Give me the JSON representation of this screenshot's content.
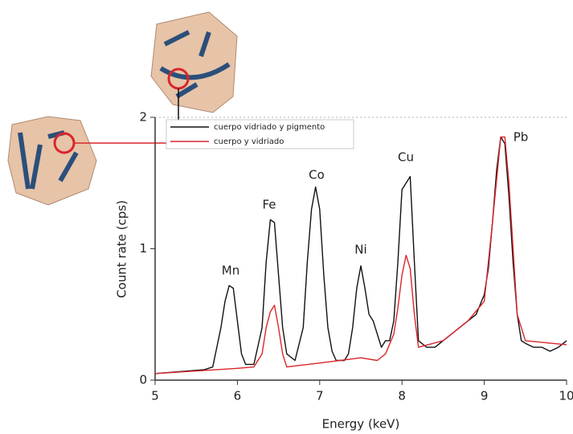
{
  "chart_data": {
    "type": "line",
    "xlabel": "Energy (keV)",
    "ylabel": "Count rate (cps)",
    "xlim": [
      5,
      10
    ],
    "ylim": [
      0,
      2
    ],
    "xticks": [
      5,
      6,
      7,
      8,
      9,
      10
    ],
    "yticks": [
      0,
      1,
      2
    ],
    "annotations": [
      "Mn",
      "Fe",
      "Co",
      "Ni",
      "Cu",
      "Pb"
    ],
    "legend": "upper left",
    "series": [
      {
        "name": "cuerpo vidriado y pigmento",
        "color": "#111111",
        "x": [
          5,
          5.2,
          5.4,
          5.6,
          5.7,
          5.8,
          5.85,
          5.9,
          5.95,
          6,
          6.05,
          6.1,
          6.2,
          6.3,
          6.35,
          6.4,
          6.45,
          6.5,
          6.55,
          6.6,
          6.7,
          6.8,
          6.85,
          6.9,
          6.95,
          7,
          7.05,
          7.1,
          7.15,
          7.2,
          7.3,
          7.35,
          7.4,
          7.45,
          7.5,
          7.55,
          7.6,
          7.65,
          7.7,
          7.75,
          7.8,
          7.85,
          7.9,
          7.95,
          8,
          8.05,
          8.1,
          8.15,
          8.2,
          8.3,
          8.4,
          8.5,
          8.6,
          8.7,
          8.8,
          8.9,
          9,
          9.05,
          9.1,
          9.15,
          9.2,
          9.25,
          9.3,
          9.35,
          9.4,
          9.45,
          9.5,
          9.6,
          9.7,
          9.8,
          9.9,
          10
        ],
        "values": [
          0.05,
          0.06,
          0.07,
          0.08,
          0.1,
          0.4,
          0.6,
          0.72,
          0.7,
          0.45,
          0.2,
          0.12,
          0.12,
          0.4,
          0.9,
          1.22,
          1.2,
          0.8,
          0.4,
          0.2,
          0.15,
          0.4,
          0.9,
          1.3,
          1.47,
          1.3,
          0.8,
          0.4,
          0.22,
          0.15,
          0.15,
          0.2,
          0.4,
          0.7,
          0.87,
          0.7,
          0.5,
          0.45,
          0.35,
          0.25,
          0.3,
          0.3,
          0.45,
          0.9,
          1.45,
          1.5,
          1.55,
          0.9,
          0.3,
          0.25,
          0.25,
          0.3,
          0.35,
          0.4,
          0.45,
          0.5,
          0.65,
          0.85,
          1.2,
          1.6,
          1.85,
          1.8,
          1.4,
          0.9,
          0.5,
          0.3,
          0.28,
          0.25,
          0.25,
          0.22,
          0.25,
          0.3
        ]
      },
      {
        "name": "cuerpo y vidriado",
        "color": "#d9262b",
        "x": [
          5,
          5.5,
          6,
          6.2,
          6.3,
          6.35,
          6.4,
          6.45,
          6.5,
          6.55,
          6.6,
          7,
          7.5,
          7.7,
          7.8,
          7.9,
          7.95,
          8,
          8.05,
          8.1,
          8.15,
          8.2,
          8.5,
          8.8,
          9,
          9.1,
          9.2,
          9.25,
          9.3,
          9.4,
          9.5,
          10
        ],
        "values": [
          0.05,
          0.07,
          0.09,
          0.1,
          0.2,
          0.4,
          0.52,
          0.57,
          0.4,
          0.2,
          0.1,
          0.13,
          0.17,
          0.15,
          0.2,
          0.35,
          0.55,
          0.8,
          0.95,
          0.85,
          0.5,
          0.25,
          0.3,
          0.45,
          0.6,
          1.2,
          1.85,
          1.85,
          1.5,
          0.5,
          0.3,
          0.27
        ]
      }
    ]
  }
}
